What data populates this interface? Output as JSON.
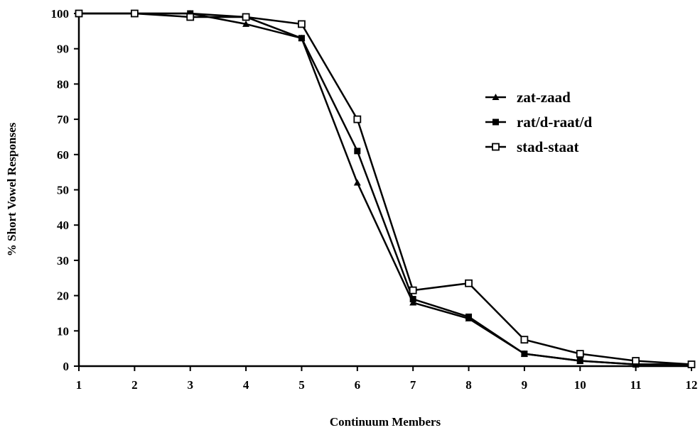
{
  "chart_data": {
    "type": "line",
    "title": "",
    "xlabel": "Continuum Members",
    "ylabel": "% Short Vowel Responses",
    "x": [
      1,
      2,
      3,
      4,
      5,
      6,
      7,
      8,
      9,
      10,
      11,
      12
    ],
    "xticks": [
      "1",
      "2",
      "3",
      "4",
      "5",
      "6",
      "7",
      "8",
      "9",
      "10",
      "11",
      "12"
    ],
    "yticks": [
      "0",
      "10",
      "20",
      "30",
      "40",
      "50",
      "60",
      "70",
      "80",
      "90",
      "100"
    ],
    "xlim": [
      1,
      12
    ],
    "ylim": [
      0,
      100
    ],
    "grid": false,
    "legend_position": "right",
    "series": [
      {
        "name": "zat-zaad",
        "marker": "triangle",
        "color": "#000000",
        "values": [
          100,
          100,
          100,
          97,
          93,
          52,
          18,
          13.5,
          3.5,
          1.5,
          0.5,
          0.5
        ]
      },
      {
        "name": "rat/d-raat/d",
        "marker": "filled-square",
        "color": "#000000",
        "values": [
          100,
          100,
          100,
          99,
          93,
          61,
          19,
          14,
          3.5,
          1.5,
          0.5,
          0.5
        ]
      },
      {
        "name": "stad-staat",
        "marker": "open-square",
        "color": "#000000",
        "values": [
          100,
          100,
          99,
          99,
          97,
          70,
          21.5,
          23.5,
          7.5,
          3.5,
          1.5,
          0.5
        ]
      }
    ]
  }
}
